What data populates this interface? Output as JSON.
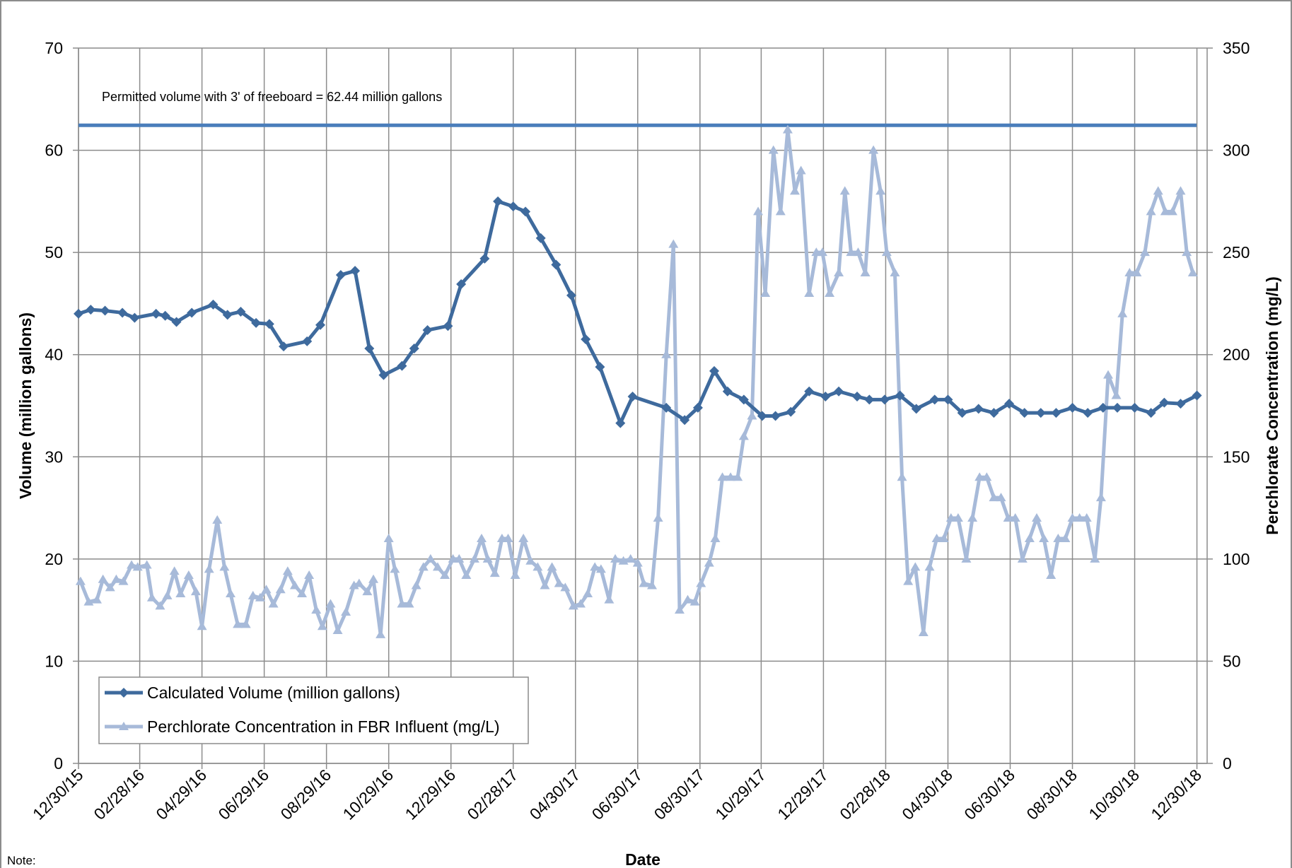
{
  "chart_data": {
    "type": "line",
    "xlabel": "Date",
    "ylabel": "Volume (million gallons)",
    "y2label": "Perchlorate Concentration (mg/L)",
    "note": "Note:",
    "xlim": [
      "2015-12-30",
      "2019-01-09"
    ],
    "xticks": [
      {
        "value": "2015-12-30",
        "label": "12/30/15"
      },
      {
        "value": "2016-02-28",
        "label": "02/28/16"
      },
      {
        "value": "2016-04-29",
        "label": "04/29/16"
      },
      {
        "value": "2016-06-29",
        "label": "06/29/16"
      },
      {
        "value": "2016-08-29",
        "label": "08/29/16"
      },
      {
        "value": "2016-10-29",
        "label": "10/29/16"
      },
      {
        "value": "2016-12-29",
        "label": "12/29/16"
      },
      {
        "value": "2017-02-28",
        "label": "02/28/17"
      },
      {
        "value": "2017-04-30",
        "label": "04/30/17"
      },
      {
        "value": "2017-06-30",
        "label": "06/30/17"
      },
      {
        "value": "2017-08-30",
        "label": "08/30/17"
      },
      {
        "value": "2017-10-29",
        "label": "10/29/17"
      },
      {
        "value": "2017-12-29",
        "label": "12/29/17"
      },
      {
        "value": "2018-02-28",
        "label": "02/28/18"
      },
      {
        "value": "2018-04-30",
        "label": "04/30/18"
      },
      {
        "value": "2018-06-30",
        "label": "06/30/18"
      },
      {
        "value": "2018-08-30",
        "label": "08/30/18"
      },
      {
        "value": "2018-10-30",
        "label": "10/30/18"
      },
      {
        "value": "2018-12-30",
        "label": "12/30/18"
      }
    ],
    "ylim": [
      0,
      70
    ],
    "yticks": [
      0,
      10,
      20,
      30,
      40,
      50,
      60,
      70
    ],
    "y2lim": [
      0,
      350
    ],
    "y2ticks": [
      0,
      50,
      100,
      150,
      200,
      250,
      300,
      350
    ],
    "grid": true,
    "legend": "lower left",
    "reference_line": {
      "value": 62.44,
      "label": "Permitted volume with 3' of freeboard = 62.44 million gallons",
      "color": "#4a7ebb"
    },
    "series": [
      {
        "name": "Calculated Volume (million gallons)",
        "color": "#3e6a9d",
        "marker": "diamond",
        "axis": "y",
        "x": [
          "2015-12-30",
          "2016-01-11",
          "2016-01-25",
          "2016-02-11",
          "2016-02-23",
          "2016-03-15",
          "2016-03-24",
          "2016-04-04",
          "2016-04-19",
          "2016-05-10",
          "2016-05-24",
          "2016-06-06",
          "2016-06-21",
          "2016-07-04",
          "2016-07-18",
          "2016-08-10",
          "2016-08-23",
          "2016-09-12",
          "2016-09-26",
          "2016-10-10",
          "2016-10-24",
          "2016-11-11",
          "2016-11-23",
          "2016-12-06",
          "2016-12-26",
          "2017-01-08",
          "2017-01-31",
          "2017-02-13",
          "2017-02-28",
          "2017-03-12",
          "2017-03-27",
          "2017-04-11",
          "2017-04-26",
          "2017-05-10",
          "2017-05-24",
          "2017-06-13",
          "2017-06-25",
          "2017-07-28",
          "2017-08-15",
          "2017-08-28",
          "2017-09-13",
          "2017-09-26",
          "2017-10-12",
          "2017-10-30",
          "2017-11-12",
          "2017-11-27",
          "2017-12-15",
          "2017-12-31",
          "2018-01-13",
          "2018-01-31",
          "2018-02-12",
          "2018-02-27",
          "2018-03-14",
          "2018-03-30",
          "2018-04-17",
          "2018-04-30",
          "2018-05-14",
          "2018-05-30",
          "2018-06-14",
          "2018-06-29",
          "2018-07-14",
          "2018-07-30",
          "2018-08-14",
          "2018-08-30",
          "2018-09-14",
          "2018-09-29",
          "2018-10-13",
          "2018-10-30",
          "2018-11-15",
          "2018-11-28",
          "2018-12-14",
          "2018-12-30"
        ],
        "values": [
          44,
          44.4,
          44.3,
          44.1,
          43.6,
          44,
          43.8,
          43.2,
          44.1,
          44.9,
          43.9,
          44.2,
          43.1,
          43,
          40.8,
          41.3,
          42.9,
          47.8,
          48.2,
          40.6,
          38,
          38.9,
          40.6,
          42.4,
          42.8,
          46.9,
          49.4,
          55,
          54.5,
          54,
          51.4,
          48.8,
          45.8,
          41.5,
          38.8,
          33.3,
          35.9,
          34.8,
          33.6,
          34.8,
          38.4,
          36.4,
          35.6,
          34,
          34,
          34.4,
          36.4,
          35.9,
          36.4,
          35.9,
          35.6,
          35.6,
          36,
          34.7,
          35.6,
          35.6,
          34.3,
          34.7,
          34.3,
          35.2,
          34.3,
          34.3,
          34.3,
          34.8,
          34.3,
          34.8,
          34.8,
          34.8,
          34.3,
          35.3,
          35.2,
          36
        ]
      },
      {
        "name": "Perchlorate Concentration in FBR Influent (mg/L)",
        "color": "#a7bad9",
        "marker": "triangle",
        "axis": "y2",
        "x": [
          "2016-01-01",
          "2016-01-09",
          "2016-01-17",
          "2016-01-23",
          "2016-01-30",
          "2016-02-05",
          "2016-02-12",
          "2016-02-20",
          "2016-02-26",
          "2016-03-06",
          "2016-03-11",
          "2016-03-19",
          "2016-03-26",
          "2016-04-02",
          "2016-04-08",
          "2016-04-16",
          "2016-04-23",
          "2016-04-29",
          "2016-05-06",
          "2016-05-14",
          "2016-05-21",
          "2016-05-27",
          "2016-06-03",
          "2016-06-11",
          "2016-06-18",
          "2016-06-25",
          "2016-07-01",
          "2016-07-08",
          "2016-07-15",
          "2016-07-22",
          "2016-07-29",
          "2016-08-05",
          "2016-08-12",
          "2016-08-19",
          "2016-08-25",
          "2016-09-02",
          "2016-09-09",
          "2016-09-17",
          "2016-09-25",
          "2016-09-30",
          "2016-10-08",
          "2016-10-14",
          "2016-10-21",
          "2016-10-29",
          "2016-11-04",
          "2016-11-11",
          "2016-11-18",
          "2016-11-25",
          "2016-12-02",
          "2016-12-09",
          "2016-12-16",
          "2016-12-23",
          "2016-12-31",
          "2017-01-06",
          "2017-01-13",
          "2017-01-21",
          "2017-01-28",
          "2017-02-03",
          "2017-02-10",
          "2017-02-17",
          "2017-02-23",
          "2017-03-02",
          "2017-03-10",
          "2017-03-17",
          "2017-03-24",
          "2017-03-31",
          "2017-04-07",
          "2017-04-14",
          "2017-04-20",
          "2017-04-28",
          "2017-05-05",
          "2017-05-12",
          "2017-05-19",
          "2017-05-25",
          "2017-06-02",
          "2017-06-08",
          "2017-06-16",
          "2017-06-23",
          "2017-06-30",
          "2017-07-06",
          "2017-07-14",
          "2017-07-20",
          "2017-07-28",
          "2017-08-04",
          "2017-08-10",
          "2017-08-18",
          "2017-08-25",
          "2017-08-31",
          "2017-09-08",
          "2017-09-14",
          "2017-09-21",
          "2017-09-29",
          "2017-10-06",
          "2017-10-12",
          "2017-10-20",
          "2017-10-26",
          "2017-11-02",
          "2017-11-10",
          "2017-11-17",
          "2017-11-24",
          "2017-12-01",
          "2017-12-07",
          "2017-12-15",
          "2017-12-22",
          "2017-12-28",
          "2018-01-04",
          "2018-01-13",
          "2018-01-19",
          "2018-01-25",
          "2018-02-01",
          "2018-02-08",
          "2018-02-16",
          "2018-02-23",
          "2018-03-01",
          "2018-03-09",
          "2018-03-16",
          "2018-03-22",
          "2018-03-29",
          "2018-04-06",
          "2018-04-12",
          "2018-04-19",
          "2018-04-26",
          "2018-05-03",
          "2018-05-10",
          "2018-05-18",
          "2018-05-24",
          "2018-05-31",
          "2018-06-07",
          "2018-06-14",
          "2018-06-21",
          "2018-06-28",
          "2018-07-05",
          "2018-07-12",
          "2018-07-19",
          "2018-07-26",
          "2018-08-02",
          "2018-08-09",
          "2018-08-16",
          "2018-08-23",
          "2018-08-30",
          "2018-09-06",
          "2018-09-13",
          "2018-09-21",
          "2018-09-27",
          "2018-10-04",
          "2018-10-12",
          "2018-10-18",
          "2018-10-25",
          "2018-11-01",
          "2018-11-09",
          "2018-11-15",
          "2018-11-22",
          "2018-11-29",
          "2018-12-06",
          "2018-12-14",
          "2018-12-20",
          "2018-12-26"
        ],
        "values": [
          89,
          79,
          80,
          90,
          86,
          90,
          89,
          97,
          96,
          97,
          81,
          77,
          82,
          94,
          83,
          92,
          84,
          67,
          95,
          119,
          96,
          83,
          68,
          68,
          82,
          81,
          85,
          78,
          85,
          94,
          87,
          83,
          92,
          75,
          67,
          78,
          65,
          74,
          87,
          88,
          84,
          90,
          63,
          110,
          95,
          78,
          78,
          87,
          96,
          100,
          96,
          92,
          100,
          100,
          92,
          100,
          110,
          100,
          93,
          110,
          110,
          92,
          110,
          99,
          96,
          87,
          96,
          88,
          86,
          77,
          78,
          83,
          96,
          95,
          80,
          100,
          99,
          100,
          98,
          88,
          87,
          120,
          200,
          254,
          75,
          80,
          79,
          88,
          98,
          110,
          140,
          140,
          140,
          160,
          170,
          270,
          230,
          300,
          270,
          310,
          280,
          290,
          230,
          250,
          250,
          230,
          240,
          280,
          250,
          250,
          240,
          300,
          280,
          250,
          240,
          140,
          89,
          96,
          64,
          96,
          110,
          110,
          120,
          120,
          100,
          120,
          140,
          140,
          130,
          130,
          120,
          120,
          100,
          110,
          120,
          110,
          92,
          110,
          110,
          120,
          120,
          120,
          100,
          130,
          190,
          180,
          220,
          240,
          240,
          250,
          270,
          280,
          270,
          270,
          280,
          250,
          240
        ]
      }
    ]
  }
}
